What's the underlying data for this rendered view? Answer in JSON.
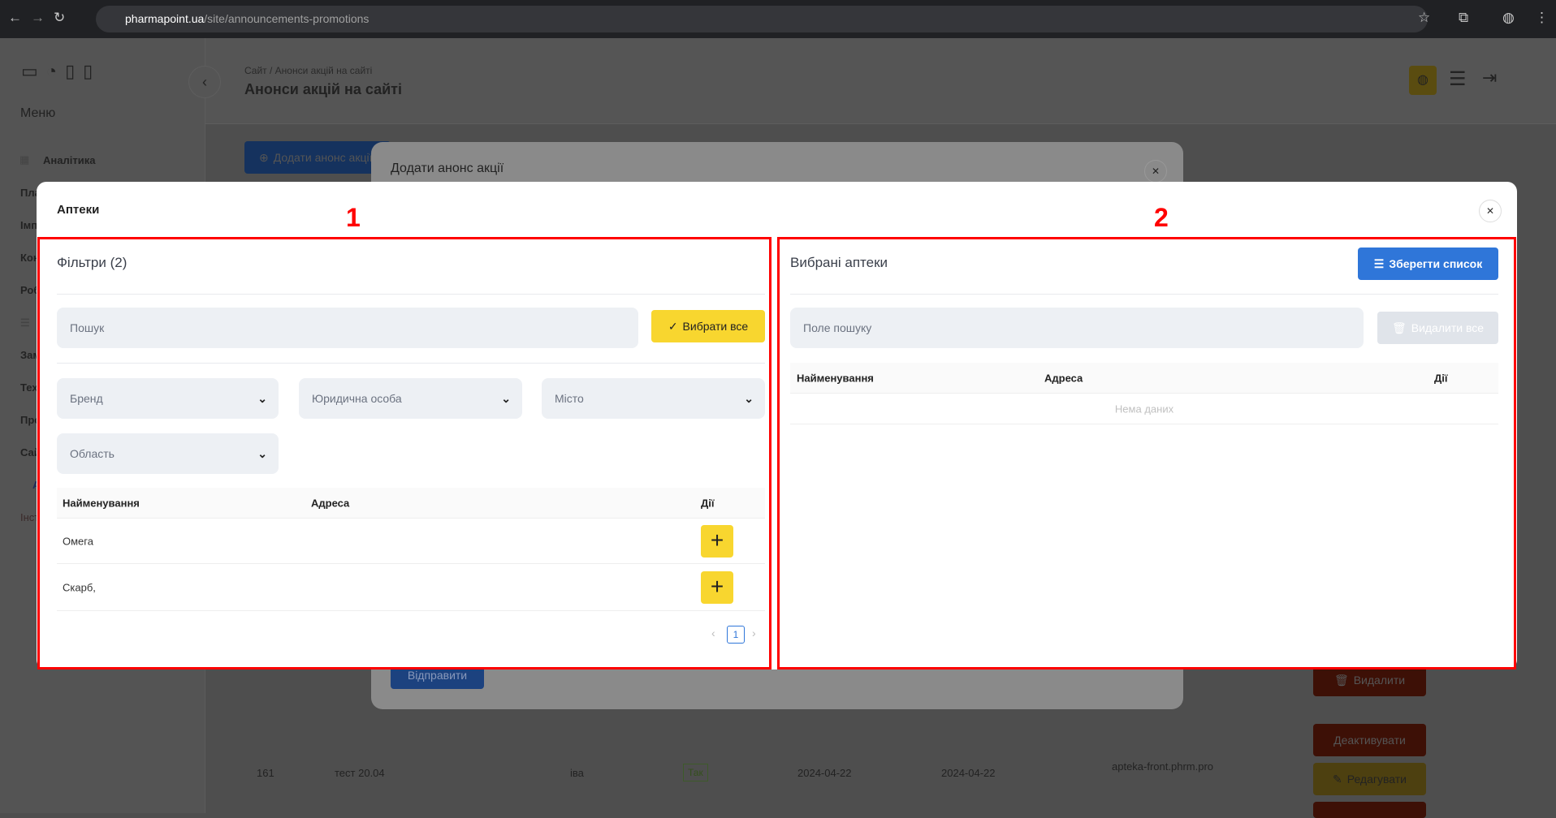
{
  "browser": {
    "url_host": "pharmapoint.ua",
    "url_path": "/site/announcements-promotions"
  },
  "sidebar": {
    "menu_title": "Меню",
    "items": [
      "Аналітика",
      "Пла",
      "Імп",
      "Кон",
      "Роб",
      "Зам",
      "Тех",
      "Про",
      "Сай",
      "А",
      "Інст"
    ]
  },
  "header": {
    "breadcrumb": "Сайт / Анонси акцій на сайті",
    "title": "Анонси акцій на сайті"
  },
  "background": {
    "add_button": "Додати анонс акції",
    "modal_title": "Додати анонс акції",
    "submit_button": "Відправити",
    "row": {
      "id": "161",
      "name": "тест 20.04",
      "author": "іва",
      "active": "Так",
      "start": "2024-04-22",
      "end": "2024-04-22",
      "site": "apteka-front.phrm.pro"
    },
    "actions": {
      "delete": "Видалити",
      "deactivate": "Деактивувати",
      "edit": "Редагувати"
    }
  },
  "modal": {
    "title": "Аптеки",
    "annotations": [
      "1",
      "2"
    ],
    "left": {
      "title": "Фільтри (2)",
      "search_placeholder": "Пошук",
      "select_all": "Вибрати все",
      "filters": [
        "Бренд",
        "Юридична особа",
        "Місто",
        "Область"
      ],
      "columns": [
        "Найменування",
        "Адреса",
        "Дії"
      ],
      "rows": [
        {
          "name": "Омега",
          "address": ""
        },
        {
          "name": "Скарб,",
          "address": ""
        }
      ],
      "page": "1"
    },
    "right": {
      "title": "Вибрані аптеки",
      "save_list": "Зберегти список",
      "search_placeholder": "Поле пошуку",
      "delete_all": "Видалити все",
      "columns": [
        "Найменування",
        "Адреса",
        "Дії"
      ],
      "empty": "Нема даних"
    }
  },
  "colors": {
    "primary": "#2f76d9",
    "yellow": "#f8d62f",
    "annotation": "#ff0000"
  }
}
